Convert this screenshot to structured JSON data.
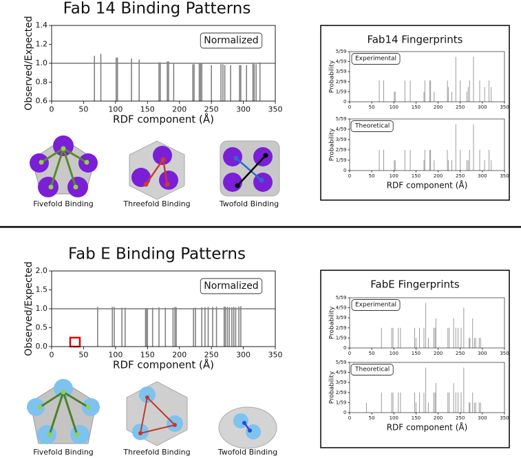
{
  "chart_data": [
    {
      "type": "bar",
      "title": "Fab 14 Binding Patterns",
      "annotation": "Normalized",
      "xlabel": "RDF component (Å)",
      "ylabel": "Observed/Expected",
      "x": [
        67,
        77,
        101,
        103,
        125,
        137,
        168,
        170,
        181,
        183,
        191,
        221,
        223,
        231,
        233,
        235,
        250,
        265,
        268,
        271,
        280,
        294,
        296,
        305,
        315,
        317,
        320,
        326
      ],
      "values": [
        1.08,
        1.1,
        1.06,
        1.06,
        1.05,
        1.04,
        1.01,
        1.01,
        1.02,
        1.02,
        1.0,
        0.99,
        0.99,
        1.0,
        1.0,
        1.0,
        0.98,
        0.99,
        0.99,
        0.98,
        0.98,
        0.98,
        0.98,
        0.98,
        1.0,
        0.99,
        0.99,
        1.01
      ],
      "color": "#808080",
      "reference_line": 1,
      "xlim": [
        0,
        350
      ],
      "xticks": [
        0,
        50,
        100,
        150,
        200,
        250,
        300,
        350
      ],
      "ylim": [
        0.6,
        1.4
      ],
      "yticks": [
        0.6,
        0.8,
        {
          "value": 1,
          "label": "1.0"
        },
        1.2,
        1.4
      ]
    },
    {
      "type": "bar",
      "annotation": "Experimental",
      "ylabel": "Probability",
      "x": [
        67,
        77,
        101,
        103,
        125,
        137,
        168,
        170,
        181,
        183,
        191,
        221,
        223,
        231,
        240,
        250,
        265,
        268,
        271,
        280,
        294,
        305,
        315,
        320
      ],
      "values": [
        0.036,
        0.036,
        0.017,
        0.017,
        0.036,
        0.036,
        0.017,
        0.036,
        0.036,
        0.036,
        0.017,
        0.036,
        0.025,
        0.017,
        0.076,
        0.036,
        0.017,
        0.025,
        0.036,
        0.076,
        0.036,
        0.025,
        0.036,
        0.025
      ],
      "color": "#9a9a9a",
      "xlim": [
        0,
        350
      ],
      "xticks": [
        0,
        50,
        100,
        150,
        200,
        250,
        300,
        350
      ],
      "ylim": [
        0,
        0.08475
      ],
      "yticks": [
        0,
        {
          "value": 0.01695,
          "label": "1/59"
        },
        {
          "value": 0.0339,
          "label": "2/59"
        },
        {
          "value": 0.05085,
          "label": "3/59"
        },
        {
          "value": 0.0678,
          "label": "4/59"
        },
        {
          "value": 0.08475,
          "label": "5/59"
        }
      ]
    },
    {
      "type": "bar",
      "annotation": "Theoretical",
      "ylabel": "Probability",
      "xlabel": "RDF component (Å)",
      "x": [
        67,
        77,
        101,
        103,
        125,
        137,
        168,
        170,
        181,
        183,
        191,
        221,
        223,
        231,
        240,
        250,
        265,
        268,
        271,
        280,
        294,
        305,
        315,
        320
      ],
      "values": [
        0.034,
        0.034,
        0.017,
        0.017,
        0.034,
        0.034,
        0.017,
        0.034,
        0.034,
        0.034,
        0.017,
        0.034,
        0.017,
        0.017,
        0.076,
        0.034,
        0.017,
        0.017,
        0.034,
        0.076,
        0.034,
        0.017,
        0.034,
        0.017
      ],
      "color": "#9a9a9a",
      "xlim": [
        0,
        350
      ],
      "xticks": [
        0,
        50,
        100,
        150,
        200,
        250,
        300,
        350
      ],
      "ylim": [
        0,
        0.08475
      ],
      "yticks": [
        0,
        {
          "value": 0.01695,
          "label": "1/59"
        },
        {
          "value": 0.0339,
          "label": "2/59"
        },
        {
          "value": 0.05085,
          "label": "3/59"
        },
        {
          "value": 0.0678,
          "label": "4/59"
        },
        {
          "value": 0.08475,
          "label": "5/59"
        }
      ]
    },
    {
      "type": "bar",
      "title": "Fab E Binding Patterns",
      "annotation": "Normalized",
      "xlabel": "RDF component (Å)",
      "ylabel": "Observed/Expected",
      "x": [
        72,
        95,
        98,
        110,
        115,
        147,
        148,
        150,
        158,
        168,
        178,
        190,
        193,
        195,
        222,
        225,
        235,
        240,
        245,
        252,
        258,
        270,
        272,
        275,
        278,
        282,
        285,
        288,
        293,
        296
      ],
      "values": [
        1.05,
        1.05,
        1.05,
        1.03,
        1.03,
        1.02,
        1.02,
        1.02,
        1.03,
        1.04,
        1.03,
        1.03,
        1.05,
        1.04,
        1.02,
        1.03,
        1.04,
        1.04,
        1.05,
        1.05,
        1.06,
        1.06,
        1.05,
        1.05,
        1.04,
        1.04,
        1.05,
        1.04,
        1.06,
        1.07
      ],
      "color": "#808080",
      "reference_line": 1,
      "xlim": [
        0,
        350
      ],
      "xticks": [
        0,
        50,
        100,
        150,
        200,
        250,
        300,
        350
      ],
      "ylim": [
        0,
        2
      ],
      "yticks": [
        {
          "value": 0,
          "label": "0.0"
        },
        0.5,
        {
          "value": 1,
          "label": "1.0"
        },
        1.5,
        {
          "value": 2,
          "label": "2.0"
        }
      ]
    },
    {
      "type": "bar",
      "annotation": "Experimental",
      "ylabel": "Probability",
      "x": [
        72,
        95,
        98,
        110,
        115,
        147,
        150,
        158,
        168,
        172,
        178,
        190,
        193,
        195,
        222,
        225,
        235,
        240,
        245,
        252,
        258,
        270,
        272,
        278,
        282,
        285,
        293,
        296
      ],
      "values": [
        0.034,
        0.034,
        0.034,
        0.034,
        0.034,
        0.034,
        0.017,
        0.034,
        0.034,
        0.076,
        0.017,
        0.034,
        0.034,
        0.05,
        0.034,
        0.034,
        0.05,
        0.034,
        0.034,
        0.034,
        0.068,
        0.017,
        0.017,
        0.05,
        0.017,
        0.017,
        0.017,
        0.017
      ],
      "color": "#9a9a9a",
      "xlim": [
        0,
        350
      ],
      "xticks": [
        0,
        50,
        100,
        150,
        200,
        250,
        300,
        350
      ],
      "ylim": [
        0,
        0.08475
      ],
      "yticks": [
        0,
        {
          "value": 0.01695,
          "label": "1/59"
        },
        {
          "value": 0.0339,
          "label": "2/59"
        },
        {
          "value": 0.05085,
          "label": "3/59"
        },
        {
          "value": 0.0678,
          "label": "4/59"
        },
        {
          "value": 0.08475,
          "label": "5/59"
        }
      ]
    },
    {
      "type": "bar",
      "annotation": "Theoretical",
      "ylabel": "Probability",
      "xlabel": "RDF component (Å)",
      "x": [
        38,
        72,
        95,
        98,
        110,
        115,
        147,
        150,
        158,
        168,
        172,
        178,
        190,
        193,
        195,
        222,
        225,
        235,
        240,
        245,
        252,
        258,
        270,
        272,
        278,
        282,
        285,
        293,
        296
      ],
      "values": [
        0.017,
        0.034,
        0.034,
        0.034,
        0.034,
        0.034,
        0.034,
        0.017,
        0.034,
        0.034,
        0.076,
        0.017,
        0.034,
        0.034,
        0.05,
        0.034,
        0.034,
        0.05,
        0.034,
        0.034,
        0.034,
        0.076,
        0.017,
        0.017,
        0.034,
        0.017,
        0.017,
        0.017,
        0.017
      ],
      "color": "#9a9a9a",
      "xlim": [
        0,
        350
      ],
      "xticks": [
        0,
        50,
        100,
        150,
        200,
        250,
        300,
        350
      ],
      "ylim": [
        0,
        0.08475
      ],
      "yticks": [
        0,
        {
          "value": 0.01695,
          "label": "1/59"
        },
        {
          "value": 0.0339,
          "label": "2/59"
        },
        {
          "value": 0.05085,
          "label": "3/59"
        },
        {
          "value": 0.0678,
          "label": "4/59"
        },
        {
          "value": 0.08475,
          "label": "5/59"
        }
      ]
    }
  ],
  "panels": [
    {
      "fingerprint_title": "Fab14 Fingerprints",
      "captions": [
        "Fivefold Binding",
        "Threefold Binding",
        "Twofold Binding"
      ]
    },
    {
      "fingerprint_title": "FabE Fingerprints",
      "captions": [
        "Fivefold Binding",
        "Threefold Binding",
        "Twofold Binding"
      ]
    }
  ]
}
